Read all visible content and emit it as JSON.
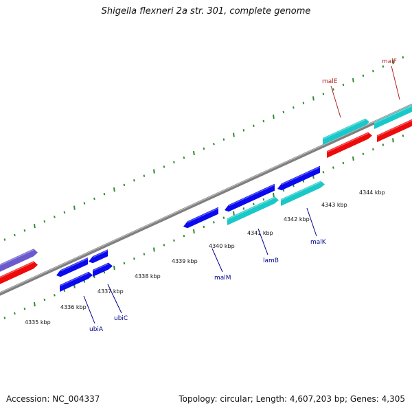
{
  "title": "Shigella flexneri 2a str. 301, complete genome",
  "footer": {
    "accession": "Accession: NC_004337",
    "summary": "Topology: circular; Length: 4,607,203 bp; Genes: 4,305"
  },
  "colors": {
    "backbone": "#7f7f7f",
    "tick_marks": "#2e8b2e",
    "forward_blue": "#0a0aee",
    "reverse_blue": "#0a0aee",
    "cyan": "#19c8c8",
    "red": "#ee0a0a",
    "purple": "#6a5acd",
    "label_blue": "#00008b",
    "label_red": "#b22222"
  },
  "kbp_ticks": [
    "4335 kbp",
    "4336 kbp",
    "4337 kbp",
    "4338 kbp",
    "4339 kbp",
    "4340 kbp",
    "4341 kbp",
    "4342 kbp",
    "4343 kbp",
    "4344 kbp"
  ],
  "gene_labels": [
    {
      "id": "ubiA",
      "text": "ubiA",
      "color": "label_blue"
    },
    {
      "id": "ubiC",
      "text": "ubiC",
      "color": "label_blue"
    },
    {
      "id": "malM",
      "text": "malM",
      "color": "label_blue"
    },
    {
      "id": "lamB",
      "text": "lamB",
      "color": "label_blue"
    },
    {
      "id": "malK",
      "text": "malK",
      "color": "label_blue"
    },
    {
      "id": "malE",
      "text": "malE",
      "color": "label_red"
    },
    {
      "id": "malF",
      "text": "malF",
      "color": "label_red"
    }
  ]
}
